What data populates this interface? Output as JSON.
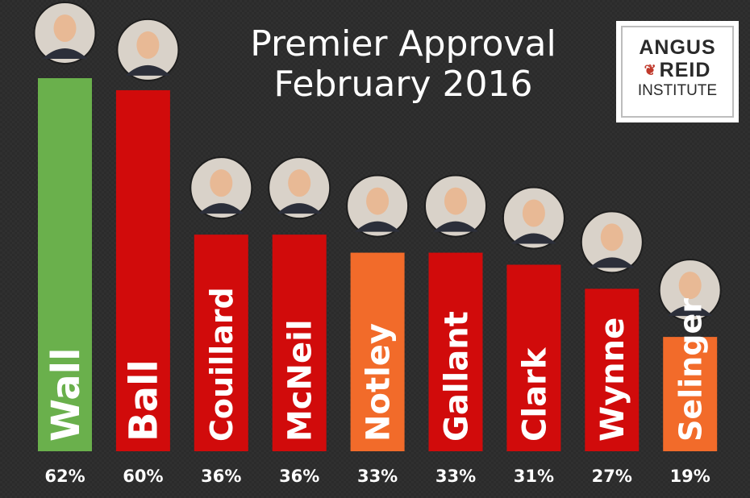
{
  "title_line1": "Premier Approval",
  "title_line2": "February 2016",
  "logo": {
    "line1": "ANGUS",
    "line2": "REID",
    "line3": "INSTITUTE",
    "leaf_icon": "maple-leaf-icon"
  },
  "colors": {
    "green": "#6ab04c",
    "red": "#d10b0b",
    "orange": "#f26b2a",
    "text": "#ffffff"
  },
  "chart_data": {
    "type": "bar",
    "categories": [
      "Wall",
      "Ball",
      "Couillard",
      "McNeil",
      "Notley",
      "Gallant",
      "Clark",
      "Wynne",
      "Selinger"
    ],
    "values": [
      62,
      60,
      36,
      36,
      33,
      33,
      31,
      27,
      19
    ],
    "data_labels": [
      "62%",
      "60%",
      "36%",
      "36%",
      "33%",
      "33%",
      "31%",
      "27%",
      "19%"
    ],
    "bar_colors": [
      "green",
      "red",
      "red",
      "red",
      "orange",
      "red",
      "red",
      "red",
      "orange"
    ],
    "ylim": [
      0,
      62
    ]
  }
}
